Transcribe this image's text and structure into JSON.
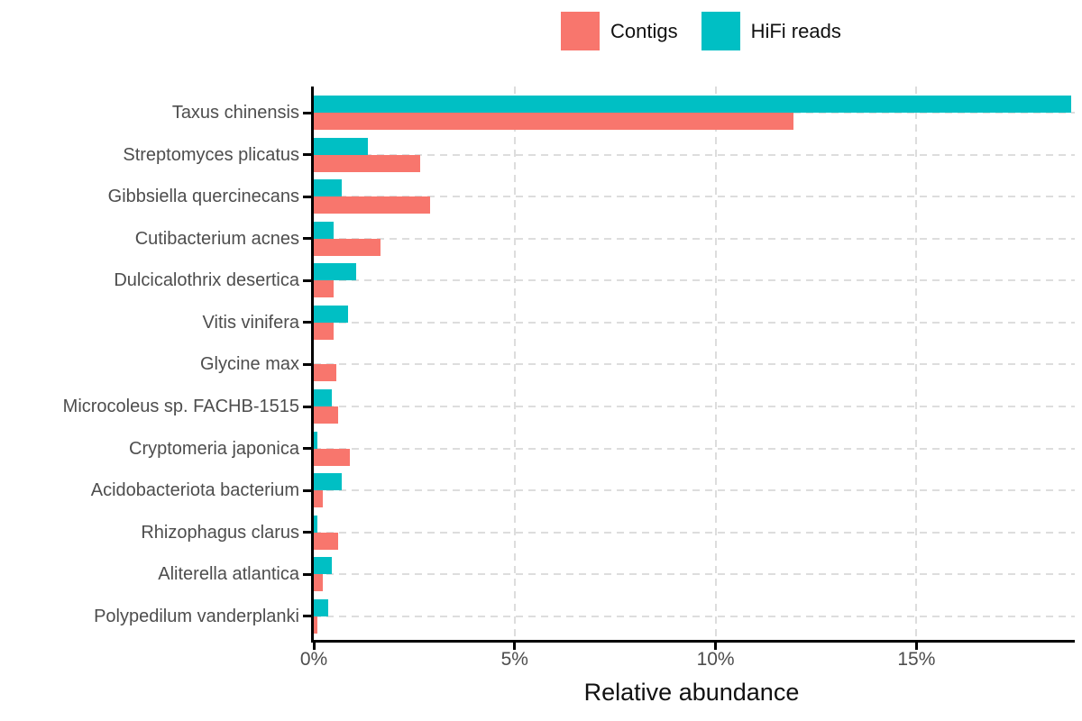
{
  "chart_data": {
    "type": "bar",
    "orientation": "horizontal",
    "title": "",
    "xlabel": "Relative abundance",
    "ylabel": "",
    "xlim": [
      0,
      18.94
    ],
    "x_tick_values": [
      0,
      5,
      10,
      15
    ],
    "x_tick_labels": [
      "0%",
      "5%",
      "10%",
      "15%"
    ],
    "grid": "dashed, major x and y",
    "legend_position": "top",
    "categories": [
      "Taxus chinensis",
      "Streptomyces plicatus",
      "Gibbsiella quercinecans",
      "Cutibacterium acnes",
      "Dulcicalothrix desertica",
      "Vitis vinifera",
      "Glycine max",
      "Microcoleus sp. FACHB-1515",
      "Cryptomeria japonica",
      "Acidobacteriota bacterium",
      "Rhizophagus clarus",
      "Aliterella atlantica",
      "Polypedilum vanderplanki"
    ],
    "series": [
      {
        "name": "Contigs",
        "color": "#F8766D",
        "values": [
          11.95,
          2.65,
          2.9,
          1.65,
          0.5,
          0.5,
          0.55,
          0.6,
          0.9,
          0.22,
          0.6,
          0.22,
          0.1
        ]
      },
      {
        "name": "HiFi reads",
        "color": "#00BFC4",
        "values": [
          18.85,
          1.35,
          0.7,
          0.5,
          1.05,
          0.85,
          0.0,
          0.45,
          0.1,
          0.7,
          0.08,
          0.45,
          0.35
        ]
      }
    ],
    "colors": {
      "grid": "#dddddd",
      "axis": "#000000",
      "tick_text": "#4d4d4d",
      "title_text": "#111111"
    }
  }
}
